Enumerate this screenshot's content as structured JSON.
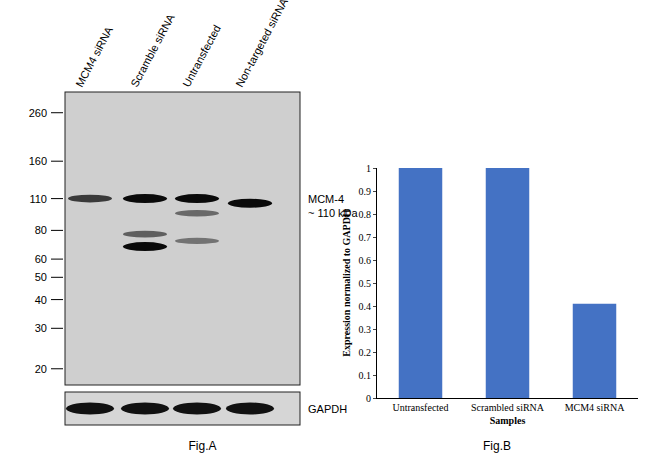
{
  "chart_data": {
    "type": "bar",
    "x_label": "Samples",
    "y_label": "Expression normalized to GAPDH",
    "categories": [
      "Untransfected",
      "Scrambled siRNA",
      "MCM4 siRNA"
    ],
    "values": [
      1,
      1,
      0.41
    ],
    "color": "#4472c4",
    "ylim": [
      0,
      1
    ],
    "yticks": [
      0,
      0.1,
      0.2,
      0.3,
      0.4,
      0.5,
      0.6,
      0.7,
      0.8,
      0.9,
      1
    ],
    "grid": false,
    "caption": "Fig.B"
  },
  "blot": {
    "lanes": [
      "MCM4 siRNA",
      "Scramble siRNA",
      "Untransfected",
      "Non-targeted siRNA"
    ],
    "markers": [
      260,
      160,
      110,
      80,
      60,
      50,
      40,
      30,
      20
    ],
    "target_label": "MCM-4",
    "target_size": "~ 110 kDa",
    "loading_label": "GAPDH",
    "bands": [
      {
        "lane": 0,
        "kda": 110,
        "intensity": 0.75
      },
      {
        "lane": 1,
        "kda": 110,
        "intensity": 1
      },
      {
        "lane": 1,
        "kda": 77,
        "intensity": 0.55
      },
      {
        "lane": 1,
        "kda": 68,
        "intensity": 1
      },
      {
        "lane": 2,
        "kda": 110,
        "intensity": 1
      },
      {
        "lane": 2,
        "kda": 95,
        "intensity": 0.5
      },
      {
        "lane": 2,
        "kda": 72,
        "intensity": 0.45
      },
      {
        "lane": 3,
        "kda": 105,
        "intensity": 1
      }
    ],
    "caption": "Fig.A"
  }
}
